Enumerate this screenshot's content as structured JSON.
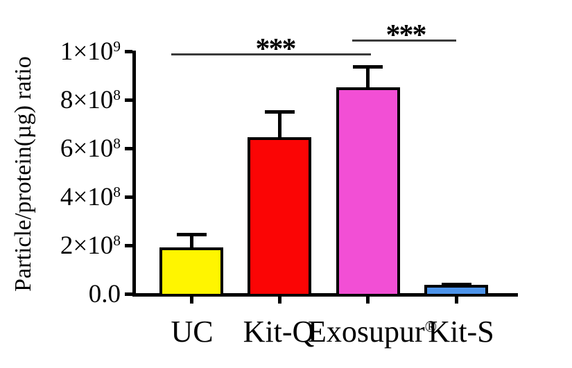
{
  "figure": {
    "background": "#ffffff",
    "axis_color": "#000000",
    "significance_line_color": "#3a3a3a"
  },
  "chart_data": {
    "type": "bar",
    "title": "",
    "xlabel": "",
    "ylabel": "Particle/protein(µg) ratio",
    "grid": false,
    "legend": null,
    "ylim": [
      0,
      1000000000
    ],
    "categories": [
      {
        "text": "UC",
        "sup": ""
      },
      {
        "text": "Kit-Q",
        "sup": ""
      },
      {
        "text": "Exosupur",
        "sup": "®"
      },
      {
        "text": "Kit-S",
        "sup": ""
      }
    ],
    "series": [
      {
        "name": "Particle/protein(µg) ratio",
        "values": [
          195000000,
          650000000,
          855000000,
          40000000
        ],
        "errors_plus": [
          60000000,
          110000000,
          90000000,
          10000000
        ]
      }
    ],
    "bar_colors": [
      "#FFF500",
      "#FB0505",
      "#F24FD5",
      "#4D94EB"
    ],
    "yticks": [
      {
        "value": 0,
        "base": "0.0",
        "sup": ""
      },
      {
        "value": 200000000,
        "base": "2×10",
        "sup": "8"
      },
      {
        "value": 400000000,
        "base": "4×10",
        "sup": "8"
      },
      {
        "value": 600000000,
        "base": "6×10",
        "sup": "8"
      },
      {
        "value": 800000000,
        "base": "8×10",
        "sup": "8"
      },
      {
        "value": 1000000000,
        "base": "1×10",
        "sup": "9"
      }
    ],
    "significance": [
      {
        "label": "***",
        "from": "UC",
        "to": "Exosupur®"
      },
      {
        "label": "***",
        "from": "Exosupur®",
        "to": "Kit-S"
      }
    ]
  }
}
